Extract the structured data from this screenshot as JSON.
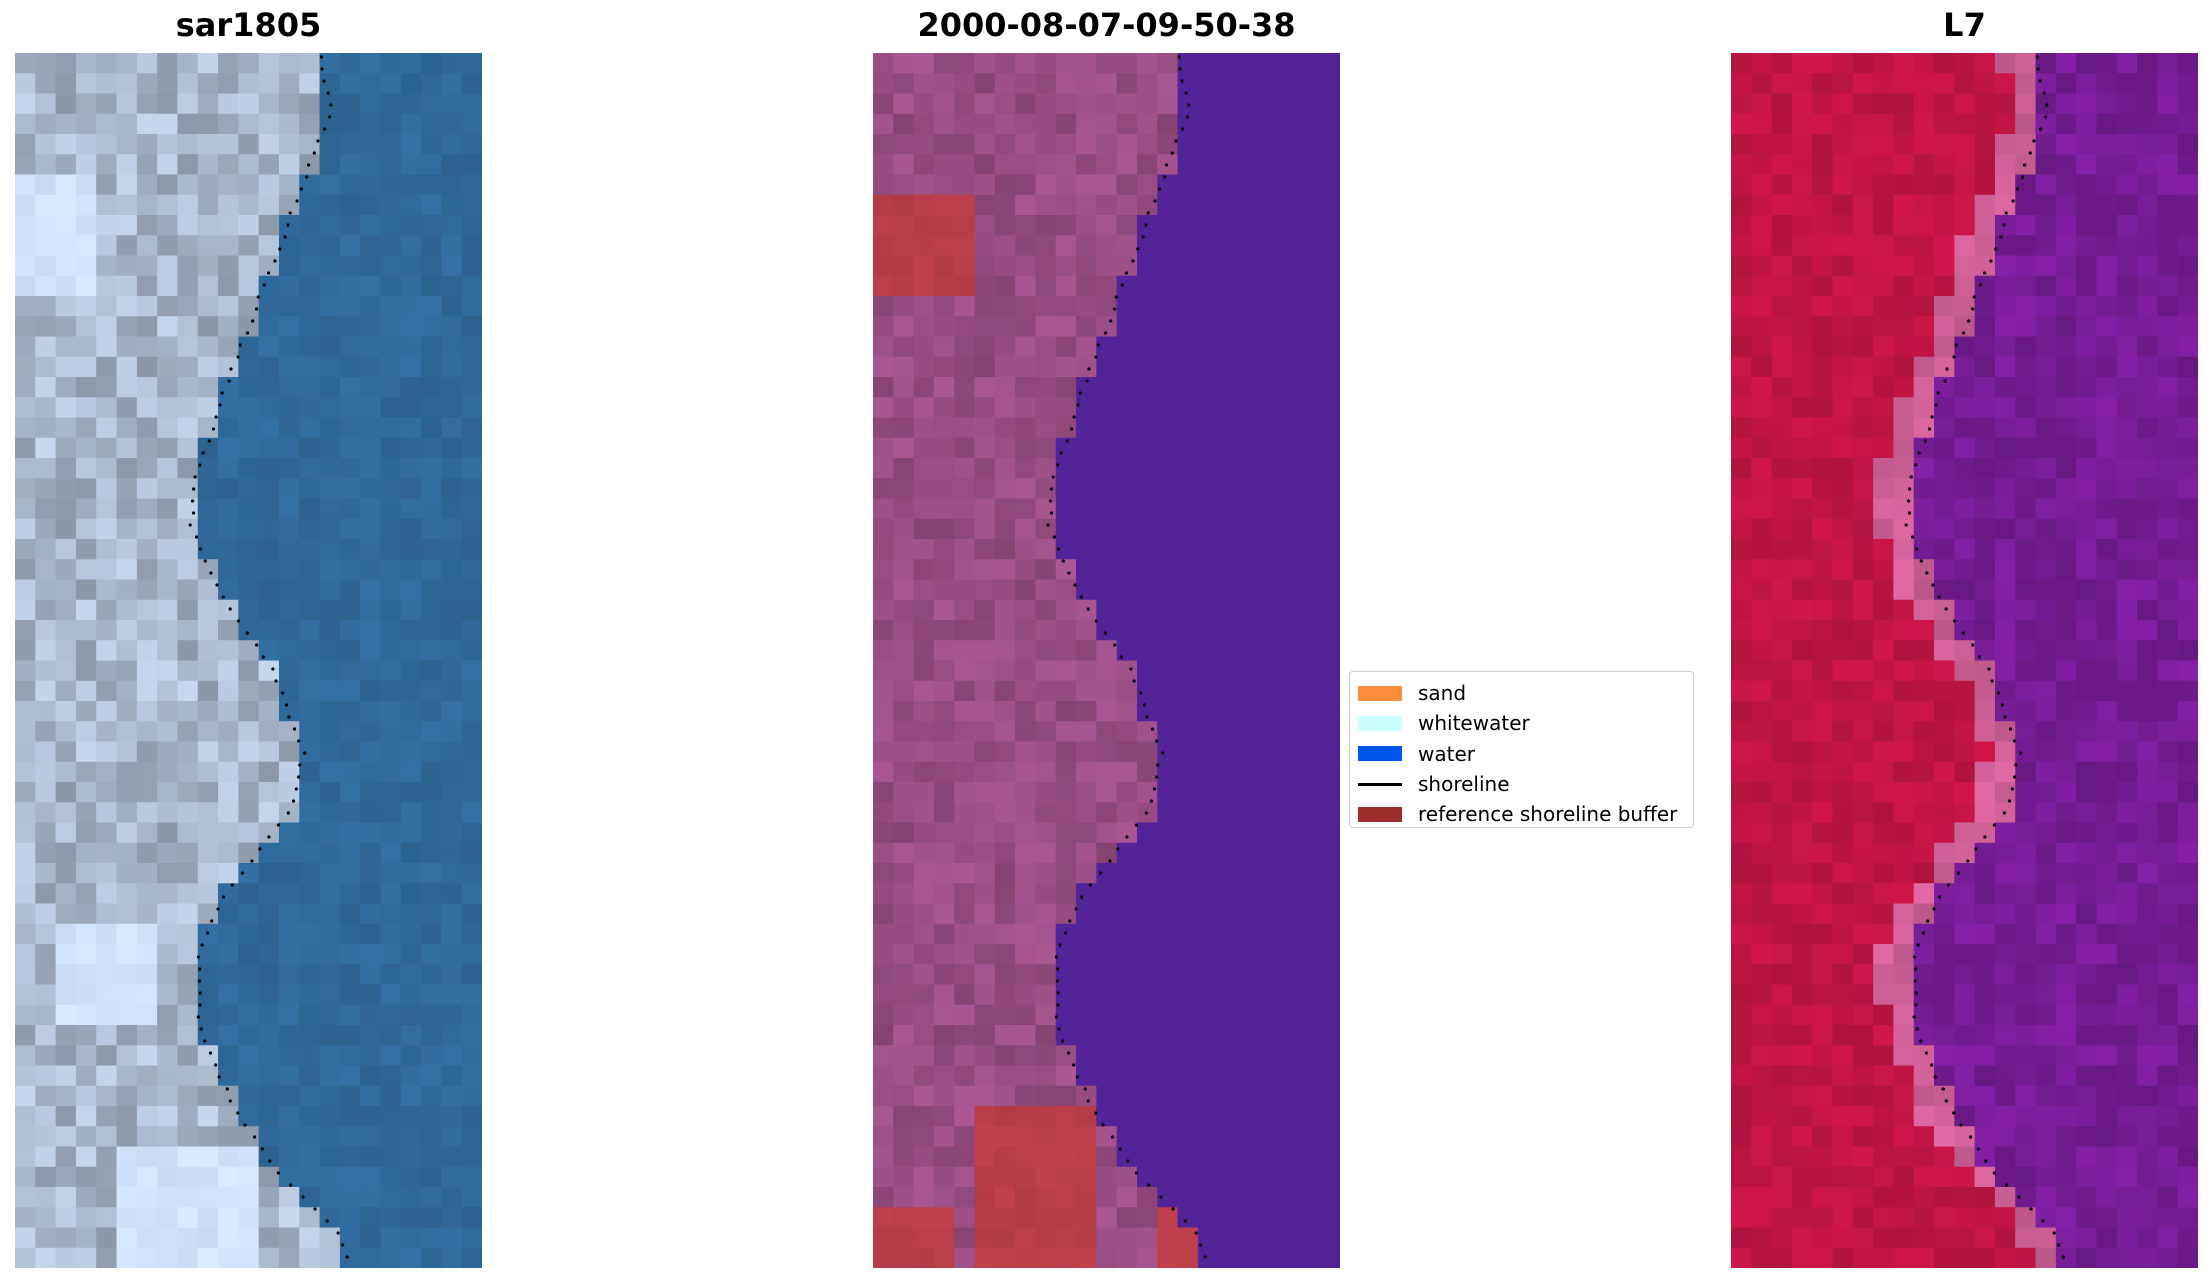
{
  "panels": [
    {
      "title": "sar1805",
      "style": "rgb"
    },
    {
      "title": "2000-08-07-09-50-38",
      "style": "classified"
    },
    {
      "title": "L7",
      "style": "index"
    }
  ],
  "legend": {
    "items": [
      {
        "label": "sand",
        "type": "patch",
        "color": "#ff8c3a"
      },
      {
        "label": "whitewater",
        "type": "patch",
        "color": "#ccffff"
      },
      {
        "label": "water",
        "type": "patch",
        "color": "#0055ee"
      },
      {
        "label": "shoreline",
        "type": "line",
        "color": "#000000"
      },
      {
        "label": "reference shoreline buffer",
        "type": "patch",
        "color": "#9b2d2d"
      }
    ]
  },
  "colors": {
    "sea_rgb": "#2f6a9c",
    "land_rgb": "#aab8cc",
    "water_class": "#522399",
    "land_class": "#9c4f86",
    "buffer_class": "#b93d4a",
    "land_index": "#c21545",
    "water_index": "#7a1d9a"
  }
}
